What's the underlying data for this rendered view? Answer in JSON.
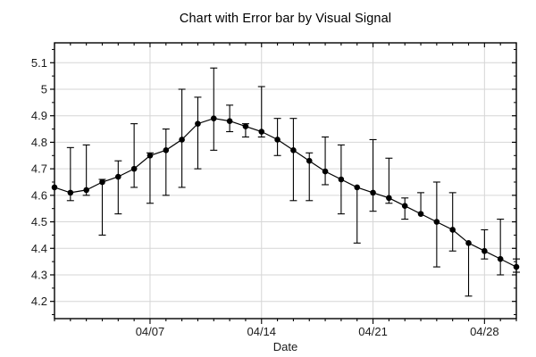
{
  "chart_data": {
    "type": "line",
    "title": "Chart with Error bar by Visual Signal",
    "xlabel": "Date",
    "ylabel": "",
    "grid": true,
    "legend": "none",
    "ylim": [
      4.135,
      5.175
    ],
    "y_ticks": [
      4.2,
      4.3,
      4.4,
      4.5,
      4.6,
      4.7,
      4.8,
      4.9,
      5.0,
      5.1
    ],
    "y_tick_labels": [
      "4.2",
      "4.3",
      "4.4",
      "4.5",
      "4.6",
      "4.7",
      "4.8",
      "4.9",
      "5",
      "5.1"
    ],
    "x_tick_days": [
      7,
      14,
      21,
      28
    ],
    "x_tick_labels": [
      "04/07",
      "04/14",
      "04/21",
      "04/28"
    ],
    "x": [
      "04/01",
      "04/02",
      "04/03",
      "04/04",
      "04/05",
      "04/06",
      "04/07",
      "04/08",
      "04/09",
      "04/10",
      "04/11",
      "04/12",
      "04/13",
      "04/14",
      "04/15",
      "04/16",
      "04/17",
      "04/18",
      "04/19",
      "04/20",
      "04/21",
      "04/22",
      "04/23",
      "04/24",
      "04/25",
      "04/26",
      "04/27",
      "04/28",
      "04/29",
      "04/30"
    ],
    "values": [
      4.63,
      4.61,
      4.62,
      4.65,
      4.67,
      4.7,
      4.75,
      4.77,
      4.81,
      4.87,
      4.89,
      4.88,
      4.86,
      4.84,
      4.81,
      4.77,
      4.73,
      4.69,
      4.66,
      4.63,
      4.61,
      4.59,
      4.56,
      4.53,
      4.5,
      4.47,
      4.42,
      4.39,
      4.36,
      4.33
    ],
    "error_high": [
      null,
      4.78,
      4.79,
      4.66,
      4.73,
      4.87,
      4.76,
      4.85,
      5.0,
      4.97,
      5.08,
      4.94,
      4.87,
      5.01,
      4.89,
      4.89,
      4.76,
      4.82,
      4.79,
      null,
      4.81,
      4.74,
      4.59,
      4.61,
      4.65,
      4.61,
      null,
      4.47,
      4.51,
      4.36
    ],
    "error_low": [
      null,
      4.58,
      4.6,
      4.45,
      4.53,
      4.63,
      4.57,
      4.6,
      4.63,
      4.7,
      4.77,
      4.84,
      4.82,
      4.82,
      4.75,
      4.58,
      4.58,
      4.64,
      4.53,
      4.42,
      4.54,
      4.57,
      4.51,
      null,
      4.33,
      4.39,
      4.22,
      4.36,
      4.3,
      4.31
    ],
    "colors": {
      "background": "#ffffff",
      "line": "#000000",
      "marker": "#000000",
      "error_bar": "#000000",
      "grid": "#d6d6d6",
      "axis": "#000000",
      "tick_text": "#1a1a1a",
      "title_text": "#000000"
    }
  }
}
